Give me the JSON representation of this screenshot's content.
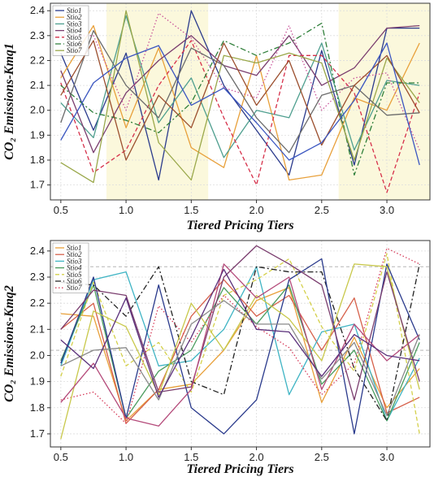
{
  "chart_data": [
    {
      "type": "line",
      "xlabel": "Tiered Pricing Tiers",
      "ylabel": "CO₂ Emissions-Kmq1",
      "xlim": [
        0.42,
        3.33
      ],
      "ylim": [
        1.64,
        2.43
      ],
      "xticks": [
        0.5,
        1.0,
        1.5,
        2.0,
        2.5,
        3.0
      ],
      "yticks": [
        1.7,
        1.8,
        1.9,
        2.0,
        2.1,
        2.2,
        2.3,
        2.4
      ],
      "tick_labels_x": [
        "0.5",
        "1.0",
        "1.5",
        "2.0",
        "2.5",
        "3.0"
      ],
      "tick_labels_y": [
        "1.7",
        "1.8",
        "1.9",
        "2.0",
        "2.1",
        "2.2",
        "2.3",
        "2.4"
      ],
      "grid": true,
      "legend_position": "top-left",
      "highlight_bands": [
        [
          0.85,
          1.63
        ],
        [
          2.63,
          3.33
        ]
      ],
      "band_color": "#fbf8dc",
      "x": [
        0.5,
        0.75,
        1.0,
        1.25,
        1.5,
        1.75,
        2.0,
        2.25,
        2.5,
        2.75,
        3.0,
        3.25
      ],
      "series": [
        {
          "name": "Stio1",
          "color": "#2a3a8c",
          "dash": "solid",
          "values": [
            2.23,
            1.92,
            2.23,
            1.72,
            2.4,
            2.1,
            1.92,
            1.74,
            2.24,
            1.78,
            2.33,
            2.33
          ]
        },
        {
          "name": "Stio2",
          "color": "#e8a03a",
          "dash": "solid",
          "values": [
            2.13,
            2.34,
            1.93,
            2.25,
            1.85,
            1.77,
            2.22,
            1.72,
            1.74,
            2.05,
            2.0,
            2.27
          ]
        },
        {
          "name": "Stio3",
          "color": "#4f9f8f",
          "dash": "solid",
          "values": [
            2.03,
            1.89,
            2.38,
            1.95,
            2.13,
            1.81,
            2.0,
            1.97,
            2.27,
            1.84,
            2.12,
            2.1
          ]
        },
        {
          "name": "Stio4",
          "color": "#7a3d6e",
          "dash": "solid",
          "values": [
            2.16,
            1.83,
            2.07,
            2.2,
            2.3,
            2.18,
            2.14,
            2.3,
            2.1,
            2.17,
            2.33,
            2.34
          ]
        },
        {
          "name": "Stio5",
          "color": "#d6304a",
          "dash": "dashed",
          "values": [
            2.11,
            1.75,
            1.84,
            2.1,
            2.28,
            1.97,
            1.7,
            2.22,
            2.22,
            2.07,
            1.67,
            2.07
          ]
        },
        {
          "name": "Stio6",
          "color": "#2f7f3a",
          "dash": "dashdot",
          "values": [
            2.1,
            1.99,
            1.96,
            1.91,
            2.03,
            2.28,
            2.22,
            2.27,
            2.35,
            1.74,
            2.11,
            2.11
          ]
        },
        {
          "name": "Stio7",
          "color": "#9aa84a",
          "dash": "solid",
          "values": [
            1.79,
            1.71,
            2.4,
            1.87,
            1.72,
            2.22,
            2.19,
            2.23,
            2.19,
            1.8,
            2.21,
            2.03
          ]
        },
        {
          "name": "",
          "color": "#c9549a",
          "dash": "dotted",
          "values": [
            2.3,
            2.3,
            2.0,
            2.39,
            2.29,
            2.09,
            2.05,
            2.34,
            2.0,
            2.13,
            2.15,
            1.84
          ]
        },
        {
          "name": "",
          "color": "#6b6b6b",
          "dash": "solid",
          "values": [
            1.95,
            2.32,
            2.1,
            1.97,
            2.25,
            2.18,
            1.97,
            1.83,
            2.06,
            2.1,
            1.98,
            1.99
          ]
        },
        {
          "name": "",
          "color": "#9b4e2d",
          "dash": "solid",
          "values": [
            2.06,
            2.28,
            1.8,
            2.06,
            1.93,
            2.27,
            2.02,
            2.2,
            1.86,
            2.1,
            2.22,
            1.99
          ]
        },
        {
          "name": "",
          "color": "#3b56c0",
          "dash": "solid",
          "values": [
            1.88,
            2.11,
            2.21,
            2.26,
            2.02,
            2.09,
            1.95,
            1.8,
            1.87,
            2.04,
            2.27,
            1.78
          ]
        }
      ]
    },
    {
      "type": "line",
      "xlabel": "Tiered Pricing Tiers",
      "ylabel": "CO₂ Emissions-Kmq2",
      "xlim": [
        0.42,
        3.33
      ],
      "ylim": [
        1.65,
        2.44
      ],
      "xticks": [
        0.5,
        1.0,
        1.5,
        2.0,
        2.5,
        3.0
      ],
      "yticks": [
        1.7,
        1.8,
        1.9,
        2.0,
        2.1,
        2.2,
        2.3,
        2.4
      ],
      "tick_labels_x": [
        "0.5",
        "1.0",
        "1.5",
        "2.0",
        "2.5",
        "3.0"
      ],
      "tick_labels_y": [
        "1.7",
        "1.8",
        "1.9",
        "2.0",
        "2.1",
        "2.2",
        "2.3",
        "2.4"
      ],
      "grid": true,
      "legend_position": "top-left",
      "reference_lines": [
        2.34,
        2.02
      ],
      "x": [
        0.5,
        0.75,
        1.0,
        1.25,
        1.5,
        1.75,
        2.0,
        2.25,
        2.5,
        2.75,
        3.0,
        3.25
      ],
      "series": [
        {
          "name": "Stio1",
          "color": "#e8a03a",
          "dash": "solid",
          "values": [
            2.16,
            2.15,
            1.75,
            1.87,
            1.89,
            2.02,
            2.21,
            2.26,
            1.82,
            2.07,
            1.8,
            1.95
          ]
        },
        {
          "name": "Stio2",
          "color": "#d6604a",
          "dash": "solid",
          "values": [
            2.1,
            2.2,
            1.74,
            1.87,
            2.15,
            2.29,
            2.15,
            2.23,
            2.02,
            2.22,
            1.78,
            1.84
          ]
        },
        {
          "name": "Stio3",
          "color": "#3fb4c4",
          "dash": "solid",
          "values": [
            1.96,
            2.29,
            2.32,
            1.96,
            1.98,
            2.1,
            2.34,
            1.85,
            2.09,
            2.12,
            1.75,
            1.99
          ]
        },
        {
          "name": "Stio4",
          "color": "#4a9c5e",
          "dash": "solid",
          "values": [
            1.98,
            2.27,
            1.76,
            1.94,
            2.02,
            2.26,
            2.12,
            2.27,
            1.89,
            2.02,
            1.75,
            2.05
          ]
        },
        {
          "name": "Stio5",
          "color": "#d4d04a",
          "dash": "dashed",
          "values": [
            1.92,
            2.28,
            1.96,
            2.05,
            1.86,
            2.23,
            2.29,
            2.37,
            2.11,
            1.94,
            2.39,
            1.7
          ]
        },
        {
          "name": "Stio6",
          "color": "#222222",
          "dash": "dashdot",
          "values": [
            2.28,
            2.27,
            2.15,
            2.34,
            1.9,
            1.85,
            2.34,
            2.32,
            2.32,
            1.95,
            1.75,
            2.35
          ]
        },
        {
          "name": "Stio7",
          "color": "#d63c5a",
          "dash": "dotted",
          "values": [
            1.83,
            1.86,
            1.74,
            2.19,
            2.05,
            2.23,
            2.11,
            2.03,
            1.85,
            1.97,
            2.41,
            2.35
          ]
        },
        {
          "name": "",
          "color": "#2a3a8c",
          "dash": "solid",
          "values": [
            1.97,
            2.3,
            1.76,
            2.27,
            1.8,
            1.7,
            1.83,
            2.29,
            2.37,
            1.7,
            2.35,
            2.06
          ]
        },
        {
          "name": "",
          "color": "#c8c84a",
          "dash": "solid",
          "values": [
            1.68,
            2.17,
            2.11,
            1.85,
            2.2,
            2.02,
            2.23,
            2.14,
            1.98,
            2.35,
            2.34,
            1.87
          ]
        },
        {
          "name": "",
          "color": "#7a3d6e",
          "dash": "solid",
          "values": [
            2.1,
            2.25,
            2.23,
            1.86,
            1.88,
            2.3,
            2.42,
            2.35,
            2.27,
            1.83,
            2.32,
            1.9
          ]
        },
        {
          "name": "",
          "color": "#b44a7a",
          "dash": "solid",
          "values": [
            1.82,
            1.97,
            1.76,
            1.73,
            1.87,
            2.35,
            2.22,
            2.3,
            1.87,
            2.12,
            1.98,
            2.08
          ]
        },
        {
          "name": "",
          "color": "#8a8a8a",
          "dash": "solid",
          "values": [
            1.96,
            2.02,
            2.03,
            1.83,
            2.12,
            2.21,
            2.12,
            2.12,
            1.91,
            2.05,
            1.77,
            2.08
          ]
        },
        {
          "name": "",
          "color": "#5a2f7a",
          "dash": "solid",
          "values": [
            2.06,
            1.95,
            2.22,
            1.84,
            2.07,
            2.33,
            2.1,
            2.09,
            1.92,
            2.08,
            2.0,
            1.98
          ]
        }
      ]
    }
  ]
}
